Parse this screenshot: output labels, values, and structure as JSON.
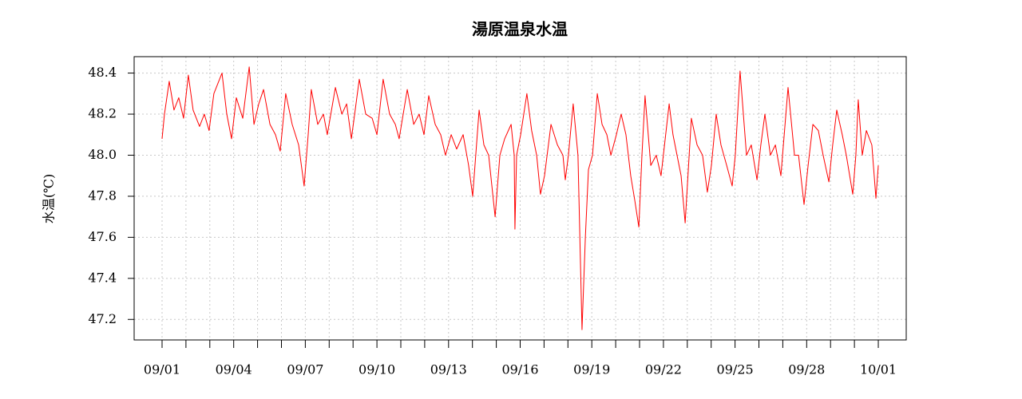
{
  "chart_data": {
    "type": "line",
    "title": "湯原温泉水温",
    "y_label": "水温(℃)",
    "color": "#ff0000",
    "grid": true,
    "xlim": [
      -1.17,
      31.17
    ],
    "ylim": [
      47.1,
      48.48
    ],
    "yticks": [
      47.2,
      47.4,
      47.6,
      47.8,
      {
        "value": 48,
        "label": "48.0"
      },
      48.2,
      48.4
    ],
    "xticks": [
      {
        "value": 0,
        "label": "09/01"
      },
      {
        "value": 1,
        "label": null
      },
      {
        "value": 2,
        "label": null
      },
      {
        "value": 3,
        "label": "09/04"
      },
      {
        "value": 4,
        "label": null
      },
      {
        "value": 5,
        "label": null
      },
      {
        "value": 6,
        "label": "09/07"
      },
      {
        "value": 7,
        "label": null
      },
      {
        "value": 8,
        "label": null
      },
      {
        "value": 9,
        "label": "09/10"
      },
      {
        "value": 10,
        "label": null
      },
      {
        "value": 11,
        "label": null
      },
      {
        "value": 12,
        "label": "09/13"
      },
      {
        "value": 13,
        "label": null
      },
      {
        "value": 14,
        "label": null
      },
      {
        "value": 15,
        "label": "09/16"
      },
      {
        "value": 16,
        "label": null
      },
      {
        "value": 17,
        "label": null
      },
      {
        "value": 18,
        "label": "09/19"
      },
      {
        "value": 19,
        "label": null
      },
      {
        "value": 20,
        "label": null
      },
      {
        "value": 21,
        "label": "09/22"
      },
      {
        "value": 22,
        "label": null
      },
      {
        "value": 23,
        "label": null
      },
      {
        "value": 24,
        "label": "09/25"
      },
      {
        "value": 25,
        "label": null
      },
      {
        "value": 26,
        "label": null
      },
      {
        "value": 27,
        "label": "09/28"
      },
      {
        "value": 28,
        "label": null
      },
      {
        "value": 29,
        "label": null
      },
      {
        "value": 30,
        "label": "10/01"
      }
    ],
    "x": [
      0,
      0.1,
      0.3,
      0.5,
      0.7,
      0.9,
      1.1,
      1.3,
      1.57,
      1.77,
      1.97,
      2.17,
      2.51,
      2.71,
      2.91,
      3.11,
      3.38,
      3.65,
      3.85,
      4.05,
      4.25,
      4.52,
      4.75,
      4.95,
      5.18,
      5.45,
      5.72,
      5.95,
      6.12,
      6.25,
      6.52,
      6.76,
      6.92,
      7.26,
      7.53,
      7.73,
      7.93,
      8.26,
      8.53,
      8.8,
      9,
      9.26,
      9.53,
      9.77,
      9.93,
      10.27,
      10.54,
      10.77,
      10.97,
      11.17,
      11.44,
      11.67,
      11.87,
      12.11,
      12.34,
      12.61,
      12.84,
      13.01,
      13.28,
      13.48,
      13.68,
      13.95,
      14.15,
      14.35,
      14.62,
      14.75,
      14.78,
      14.85,
      15.02,
      15.28,
      15.48,
      15.69,
      15.85,
      16.02,
      16.29,
      16.56,
      16.79,
      16.89,
      17.02,
      17.22,
      17.42,
      17.59,
      17.73,
      17.86,
      18.03,
      18.23,
      18.43,
      18.63,
      18.8,
      19.03,
      19.23,
      19.43,
      19.63,
      19.8,
      19.97,
      20.1,
      20.23,
      20.47,
      20.7,
      20.9,
      21.24,
      21.4,
      21.57,
      21.74,
      21.91,
      22.17,
      22.41,
      22.64,
      22.84,
      23.01,
      23.21,
      23.41,
      23.65,
      23.88,
      24.01,
      24.21,
      24.48,
      24.68,
      24.92,
      25.08,
      25.25,
      25.48,
      25.69,
      25.92,
      26.22,
      26.49,
      26.66,
      26.89,
      27.06,
      27.26,
      27.49,
      27.69,
      27.93,
      28.09,
      28.26,
      28.49,
      28.66,
      28.93,
      29.06,
      29.16,
      29.33,
      29.5,
      29.73,
      29.9,
      30
    ],
    "values": [
      48.08,
      48.2,
      48.36,
      48.22,
      48.28,
      48.18,
      48.39,
      48.22,
      48.14,
      48.2,
      48.12,
      48.3,
      48.4,
      48.2,
      48.08,
      48.28,
      48.18,
      48.43,
      48.15,
      48.25,
      48.32,
      48.15,
      48.1,
      48.02,
      48.3,
      48.15,
      48.05,
      47.85,
      48.1,
      48.32,
      48.15,
      48.2,
      48.1,
      48.33,
      48.2,
      48.25,
      48.08,
      48.37,
      48.2,
      48.18,
      48.1,
      48.37,
      48.2,
      48.15,
      48.08,
      48.32,
      48.15,
      48.2,
      48.1,
      48.29,
      48.15,
      48.1,
      48.0,
      48.1,
      48.03,
      48.1,
      47.95,
      47.8,
      48.22,
      48.05,
      48.0,
      47.7,
      48.0,
      48.08,
      48.15,
      48.0,
      47.64,
      48.0,
      48.1,
      48.3,
      48.12,
      48.0,
      47.81,
      47.9,
      48.15,
      48.05,
      48.0,
      47.88,
      48.0,
      48.25,
      48.0,
      47.15,
      47.6,
      47.93,
      48.0,
      48.3,
      48.15,
      48.1,
      48.0,
      48.1,
      48.2,
      48.1,
      47.9,
      47.78,
      47.65,
      48.0,
      48.29,
      47.95,
      48.0,
      47.9,
      48.25,
      48.1,
      48.0,
      47.9,
      47.67,
      48.18,
      48.05,
      48.0,
      47.82,
      47.95,
      48.2,
      48.05,
      47.95,
      47.85,
      48.0,
      48.41,
      48.0,
      48.05,
      47.88,
      48.05,
      48.2,
      48.0,
      48.05,
      47.9,
      48.33,
      48.0,
      48.0,
      47.76,
      47.95,
      48.15,
      48.12,
      48.0,
      47.87,
      48.05,
      48.22,
      48.1,
      48.0,
      47.81,
      48.0,
      48.27,
      48.0,
      48.12,
      48.05,
      47.79,
      47.95
    ]
  }
}
